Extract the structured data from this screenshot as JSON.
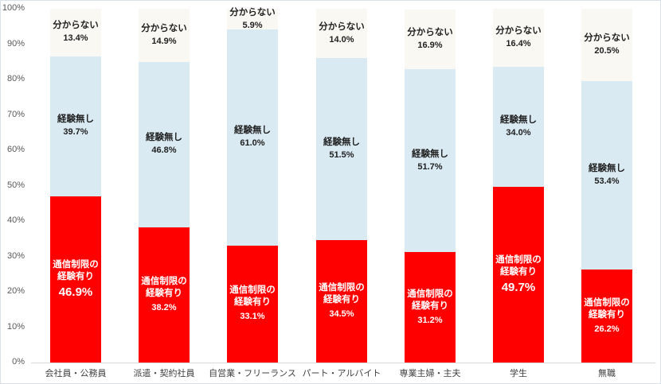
{
  "chart_data": {
    "type": "bar",
    "variant": "stacked-column-100",
    "title": "",
    "xlabel": "",
    "ylabel": "",
    "ylim": [
      0,
      100
    ],
    "grid": false,
    "legend": "none (labels inside segments)",
    "categories": [
      "会社員・公務員",
      "派遣・契約社員",
      "自営業・フリーランス",
      "パート・アルバイト",
      "専業主婦・主夫",
      "学生",
      "無職"
    ],
    "series": [
      {
        "name": "通信制限の経験有り",
        "color": "#ff0000",
        "text_color": "#ffffff",
        "values": [
          46.9,
          38.2,
          33.1,
          34.5,
          31.2,
          49.7,
          26.2
        ]
      },
      {
        "name": "経験無し",
        "color": "#daeaf3",
        "text_color": "#1f1f1f",
        "values": [
          39.7,
          46.8,
          61.0,
          51.5,
          51.7,
          34.0,
          53.4
        ]
      },
      {
        "name": "分からない",
        "color": "#faf8f2",
        "text_color": "#1f1f1f",
        "values": [
          13.4,
          14.9,
          5.9,
          14.0,
          16.9,
          16.4,
          20.5
        ]
      }
    ],
    "y_ticks": [
      "0%",
      "10%",
      "20%",
      "30%",
      "40%",
      "50%",
      "60%",
      "70%",
      "80%",
      "90%",
      "100%"
    ],
    "emphasized_value_columns": [
      0,
      5
    ],
    "colors": {
      "plot_background": "#ffffff",
      "chart_border": "#d9e2ec",
      "axis_line": "#d9d9d9",
      "tick_text": "#595959",
      "category_text": "#404040"
    }
  }
}
